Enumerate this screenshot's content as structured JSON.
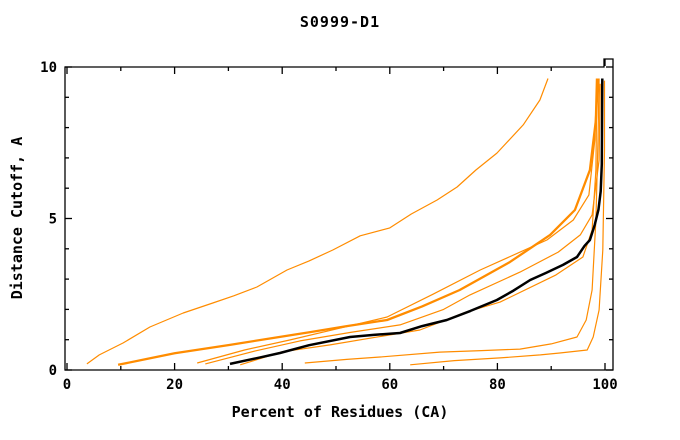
{
  "window": {
    "background_color": "#ffffff"
  },
  "chart_data": {
    "type": "line",
    "title": "S0999-D1",
    "xlabel": "Percent of Residues (CA)",
    "ylabel": "Distance Cutoff, A",
    "xlim": [
      0,
      101.5
    ],
    "ylim": [
      0,
      10
    ],
    "x_major_ticks": [
      0,
      20,
      40,
      60,
      80,
      100
    ],
    "x_minor_ticks": [
      10,
      30,
      50,
      70,
      90
    ],
    "y_major_ticks": [
      0,
      5,
      10
    ],
    "y_minor_ticks": [
      1,
      2,
      3,
      4,
      6,
      7,
      8,
      9
    ],
    "grid": false,
    "legend_position": "none",
    "axis_color": "#000000",
    "model_color": "#ff8c00",
    "reference_color": "#000000",
    "series": [
      {
        "name": "model-steep",
        "color": "#ff8c00",
        "width": 1.2,
        "points": [
          [
            3.7,
            0.2
          ],
          [
            6,
            0.5
          ],
          [
            10.4,
            0.89
          ],
          [
            15.4,
            1.42
          ],
          [
            21.6,
            1.88
          ],
          [
            27.1,
            2.21
          ],
          [
            31,
            2.45
          ],
          [
            35.3,
            2.74
          ],
          [
            40.9,
            3.3
          ],
          [
            45,
            3.6
          ],
          [
            49.4,
            3.96
          ],
          [
            54.5,
            4.43
          ],
          [
            60,
            4.69
          ],
          [
            64,
            5.15
          ],
          [
            68.8,
            5.61
          ],
          [
            72.5,
            6.04
          ],
          [
            76,
            6.6
          ],
          [
            79.9,
            7.16
          ],
          [
            84.8,
            8.09
          ],
          [
            87.9,
            8.91
          ],
          [
            89.4,
            9.62
          ]
        ]
      },
      {
        "name": "model-thick",
        "color": "#ff8c00",
        "width": 2.3,
        "points": [
          [
            9.5,
            0.17
          ],
          [
            15,
            0.37
          ],
          [
            20,
            0.55
          ],
          [
            30.3,
            0.83
          ],
          [
            38,
            1.05
          ],
          [
            45.2,
            1.25
          ],
          [
            52,
            1.45
          ],
          [
            59.5,
            1.65
          ],
          [
            66,
            2.1
          ],
          [
            73,
            2.64
          ],
          [
            82.3,
            3.56
          ],
          [
            89.8,
            4.46
          ],
          [
            94.4,
            5.28
          ],
          [
            97.2,
            6.6
          ],
          [
            98.3,
            8.25
          ],
          [
            98.7,
            9.62
          ]
        ]
      },
      {
        "name": "model-3",
        "color": "#ff8c00",
        "width": 1.2,
        "points": [
          [
            24.2,
            0.23
          ],
          [
            33,
            0.66
          ],
          [
            41.4,
            0.99
          ],
          [
            50,
            1.35
          ],
          [
            59.5,
            1.75
          ],
          [
            68,
            2.5
          ],
          [
            76.8,
            3.3
          ],
          [
            89.2,
            4.29
          ],
          [
            94.1,
            4.95
          ],
          [
            97.0,
            5.78
          ],
          [
            98.1,
            7.59
          ],
          [
            98.4,
            9.62
          ]
        ]
      },
      {
        "name": "model-4",
        "color": "#ff8c00",
        "width": 1.2,
        "points": [
          [
            25.7,
            0.2
          ],
          [
            35,
            0.63
          ],
          [
            43.3,
            0.96
          ],
          [
            53,
            1.25
          ],
          [
            61.9,
            1.49
          ],
          [
            70,
            2.0
          ],
          [
            74.9,
            2.48
          ],
          [
            84.2,
            3.23
          ],
          [
            91.3,
            3.89
          ],
          [
            95.4,
            4.46
          ],
          [
            97.6,
            5.12
          ],
          [
            98.9,
            6.93
          ],
          [
            99.1,
            9.45
          ]
        ]
      },
      {
        "name": "model-5",
        "color": "#ff8c00",
        "width": 1.2,
        "points": [
          [
            32.2,
            0.17
          ],
          [
            40,
            0.6
          ],
          [
            48.9,
            0.83
          ],
          [
            58,
            1.1
          ],
          [
            65.6,
            1.32
          ],
          [
            74,
            1.9
          ],
          [
            80.5,
            2.24
          ],
          [
            90.9,
            3.14
          ],
          [
            95.9,
            3.73
          ],
          [
            97.6,
            4.62
          ],
          [
            98.3,
            6.6
          ],
          [
            98.5,
            9.55
          ]
        ]
      },
      {
        "name": "model-low-1",
        "color": "#ff8c00",
        "width": 1.2,
        "points": [
          [
            44.2,
            0.23
          ],
          [
            52,
            0.35
          ],
          [
            58.2,
            0.43
          ],
          [
            69.3,
            0.59
          ],
          [
            77,
            0.64
          ],
          [
            84.2,
            0.69
          ],
          [
            90,
            0.86
          ],
          [
            94.8,
            1.09
          ],
          [
            96.5,
            1.65
          ],
          [
            97.6,
            2.64
          ],
          [
            98.3,
            4.95
          ],
          [
            98.7,
            7.59
          ],
          [
            98.9,
            9.62
          ]
        ]
      },
      {
        "name": "model-low-2",
        "color": "#ff8c00",
        "width": 1.2,
        "points": [
          [
            63.8,
            0.17
          ],
          [
            72,
            0.31
          ],
          [
            80.5,
            0.4
          ],
          [
            88,
            0.5
          ],
          [
            91.6,
            0.56
          ],
          [
            96.7,
            0.66
          ],
          [
            97.8,
            1.09
          ],
          [
            98.9,
            1.98
          ],
          [
            99.6,
            3.96
          ],
          [
            99.9,
            7.26
          ],
          [
            99.9,
            9.55
          ]
        ]
      },
      {
        "name": "reference-black",
        "color": "#000000",
        "width": 2.5,
        "points": [
          [
            30.3,
            0.2
          ],
          [
            36,
            0.42
          ],
          [
            39.6,
            0.56
          ],
          [
            45,
            0.82
          ],
          [
            52.6,
            1.09
          ],
          [
            57,
            1.16
          ],
          [
            61.9,
            1.22
          ],
          [
            66,
            1.45
          ],
          [
            70.6,
            1.65
          ],
          [
            75,
            1.95
          ],
          [
            79.9,
            2.31
          ],
          [
            83,
            2.62
          ],
          [
            86.1,
            2.97
          ],
          [
            89,
            3.2
          ],
          [
            92.2,
            3.47
          ],
          [
            94.8,
            3.73
          ],
          [
            96.2,
            4.1
          ],
          [
            97.2,
            4.29
          ],
          [
            98.1,
            4.8
          ],
          [
            98.8,
            5.3
          ],
          [
            99.2,
            5.9
          ],
          [
            99.4,
            6.8
          ],
          [
            99.5,
            9.62
          ]
        ]
      }
    ]
  }
}
